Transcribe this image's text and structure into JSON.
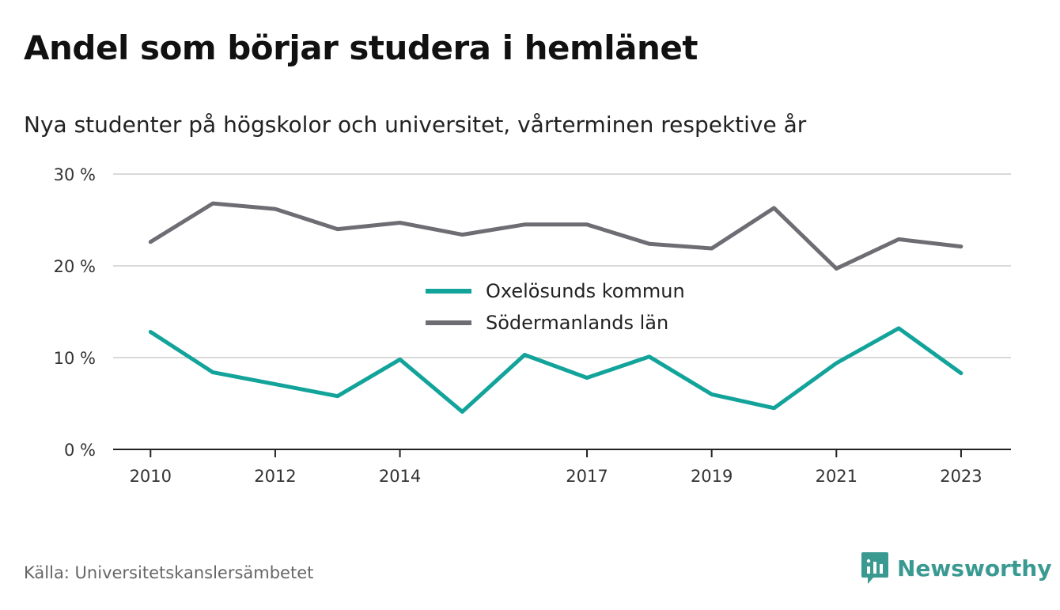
{
  "title": "Andel som börjar studera i hemlänet",
  "subtitle": "Nya studenter på högskolor och universitet, vårterminen respektive år",
  "source": "Källa: Universitetskanslersämbetet",
  "brand": {
    "name": "Newsworthy",
    "icon": "newsworthy-logo-icon",
    "color": "#3a9a92"
  },
  "chart_data": {
    "type": "line",
    "x": [
      2010,
      2011,
      2012,
      2013,
      2014,
      2015,
      2016,
      2017,
      2018,
      2019,
      2020,
      2021,
      2022,
      2023
    ],
    "x_ticks": [
      2010,
      2012,
      2014,
      2017,
      2019,
      2021,
      2023
    ],
    "x_tick_labels": [
      "2010",
      "2012",
      "2014",
      "2017",
      "2019",
      "2021",
      "2023"
    ],
    "y_ticks": [
      0,
      10,
      20,
      30
    ],
    "y_tick_labels": [
      "0 %",
      "10 %",
      "20 %",
      "30 %"
    ],
    "ylim": [
      0,
      30
    ],
    "grid": true,
    "legend_position": "center",
    "series": [
      {
        "name": "Oxelösunds kommun",
        "color": "#12a39a",
        "values": [
          12.8,
          8.4,
          7.1,
          5.8,
          9.8,
          4.1,
          10.3,
          7.8,
          10.1,
          6.0,
          4.5,
          9.4,
          13.2,
          8.3
        ]
      },
      {
        "name": "Södermanlands län",
        "color": "#6e6d74",
        "values": [
          22.6,
          26.8,
          26.2,
          24.0,
          24.7,
          23.4,
          24.5,
          24.5,
          22.4,
          21.9,
          26.3,
          19.7,
          22.9,
          22.1
        ]
      }
    ]
  }
}
